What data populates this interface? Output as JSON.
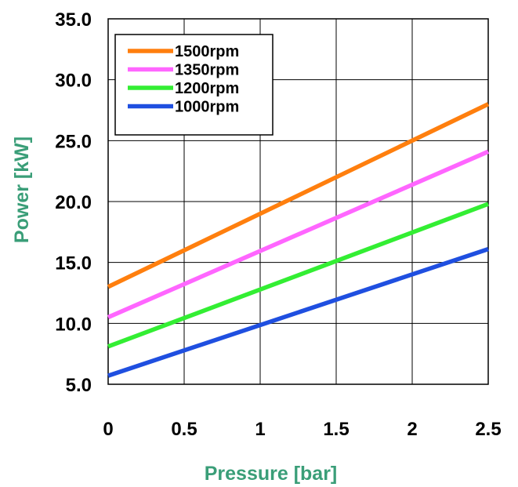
{
  "chart_data": {
    "type": "line",
    "xlabel": "Pressure [bar]",
    "ylabel": "Power [kW]",
    "axis_label_color": "#3a9e78",
    "xlim": [
      0,
      2.5
    ],
    "ylim": [
      5,
      35
    ],
    "x_ticks": [
      "0",
      "0.5",
      "1",
      "1.5",
      "2",
      "2.5"
    ],
    "x_tick_values": [
      0,
      0.5,
      1,
      1.5,
      2,
      2.5
    ],
    "y_ticks": [
      "5.0",
      "10.0",
      "15.0",
      "20.0",
      "25.0",
      "30.0",
      "35.0"
    ],
    "y_tick_values": [
      5,
      10,
      15,
      20,
      25,
      30,
      35
    ],
    "grid": true,
    "legend_position": "top-left",
    "series": [
      {
        "name": "1500rpm",
        "color": "#ff7f0e",
        "x": [
          0,
          2.5
        ],
        "values": [
          13.0,
          28.0
        ]
      },
      {
        "name": "1350rpm",
        "color": "#ff66ff",
        "x": [
          0,
          2.5
        ],
        "values": [
          10.5,
          24.1
        ]
      },
      {
        "name": "1200rpm",
        "color": "#33ee33",
        "x": [
          0,
          2.5
        ],
        "values": [
          8.1,
          19.8
        ]
      },
      {
        "name": "1000rpm",
        "color": "#1f4fe0",
        "x": [
          0,
          2.5
        ],
        "values": [
          5.7,
          16.1
        ]
      }
    ]
  }
}
